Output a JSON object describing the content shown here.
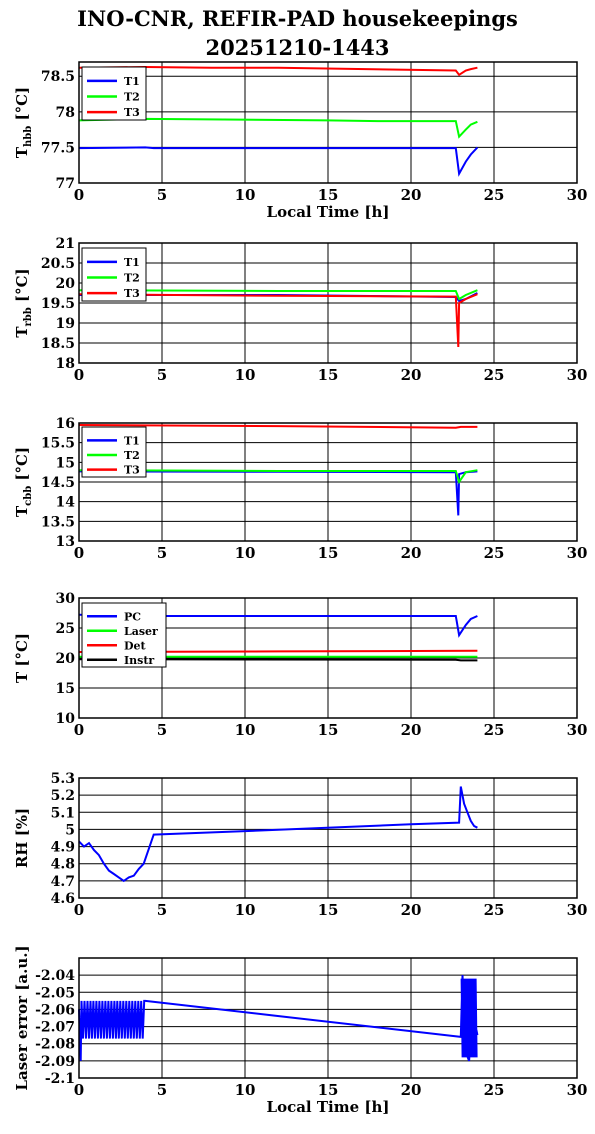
{
  "page": {
    "title_line1": "INO-CNR, REFIR-PAD housekeepings",
    "title_line2": "20251210-1443"
  },
  "chart_data": [
    {
      "type": "line",
      "xlabel": "Local Time [h]",
      "ylabel_main": "T",
      "ylabel_sub": "hbb",
      "ylabel_unit": " [°C]",
      "xlim": [
        0,
        30
      ],
      "ylim": [
        77,
        78.7
      ],
      "xticks": [
        0,
        5,
        10,
        15,
        20,
        25,
        30
      ],
      "yticks": [
        77,
        77.5,
        78,
        78.5
      ],
      "ytick_labels": [
        "77",
        "77.5",
        "78",
        "78.5"
      ],
      "grid": true,
      "legend_position": "top-left",
      "series": [
        {
          "name": "T1",
          "color": "#0000ff",
          "x": [
            0,
            4,
            4.5,
            22.7,
            22.9,
            23.3,
            23.6,
            24
          ],
          "y": [
            77.49,
            77.5,
            77.49,
            77.49,
            77.13,
            77.3,
            77.4,
            77.5
          ]
        },
        {
          "name": "T2",
          "color": "#00ff00",
          "x": [
            0,
            4,
            15,
            18,
            22.7,
            22.9,
            23.3,
            23.6,
            24
          ],
          "y": [
            77.88,
            77.9,
            77.88,
            77.87,
            77.87,
            77.65,
            77.75,
            77.82,
            77.86
          ]
        },
        {
          "name": "T3",
          "color": "#ff0000",
          "x": [
            0,
            4,
            8,
            12,
            22.7,
            22.9,
            23.3,
            23.6,
            24
          ],
          "y": [
            78.62,
            78.63,
            78.62,
            78.62,
            78.58,
            78.52,
            78.58,
            78.6,
            78.62
          ]
        }
      ]
    },
    {
      "type": "line",
      "xlabel": "",
      "ylabel_main": "T",
      "ylabel_sub": "rbb",
      "ylabel_unit": " [°C]",
      "xlim": [
        0,
        30
      ],
      "ylim": [
        18,
        21
      ],
      "xticks": [
        0,
        5,
        10,
        15,
        20,
        25,
        30
      ],
      "yticks": [
        18,
        18.5,
        19,
        19.5,
        20,
        20.5,
        21
      ],
      "ytick_labels": [
        "18",
        "18.5",
        "19",
        "19.5",
        "20",
        "20.5",
        "21"
      ],
      "grid": true,
      "legend_position": "top-left",
      "series": [
        {
          "name": "T1",
          "color": "#0000ff",
          "x": [
            0,
            12,
            22.7,
            22.9,
            23.3,
            24
          ],
          "y": [
            19.7,
            19.7,
            19.65,
            19.55,
            19.6,
            19.75
          ]
        },
        {
          "name": "T2",
          "color": "#00ff00",
          "x": [
            0,
            12,
            22.7,
            22.9,
            23.3,
            24
          ],
          "y": [
            19.82,
            19.8,
            19.8,
            19.6,
            19.7,
            19.82
          ]
        },
        {
          "name": "T3",
          "color": "#ff0000",
          "x": [
            0,
            12,
            22.7,
            22.85,
            22.9,
            23.3,
            24
          ],
          "y": [
            19.72,
            19.68,
            19.66,
            18.4,
            19.5,
            19.6,
            19.72
          ]
        }
      ]
    },
    {
      "type": "line",
      "xlabel": "",
      "ylabel_main": "T",
      "ylabel_sub": "cbb",
      "ylabel_unit": " [°C]",
      "xlim": [
        0,
        30
      ],
      "ylim": [
        13,
        16
      ],
      "xticks": [
        0,
        5,
        10,
        15,
        20,
        25,
        30
      ],
      "yticks": [
        13,
        13.5,
        14,
        14.5,
        15,
        15.5,
        16
      ],
      "ytick_labels": [
        "13",
        "13.5",
        "14",
        "14.5",
        "15",
        "15.5",
        "16"
      ],
      "grid": true,
      "legend_position": "top-left",
      "series": [
        {
          "name": "T1",
          "color": "#0000ff",
          "x": [
            0,
            12,
            22.7,
            22.85,
            22.9,
            23.3,
            24
          ],
          "y": [
            14.77,
            14.76,
            14.75,
            13.65,
            14.7,
            14.75,
            14.77
          ]
        },
        {
          "name": "T2",
          "color": "#00ff00",
          "x": [
            0,
            12,
            22.7,
            22.9,
            23.3,
            24
          ],
          "y": [
            14.8,
            14.78,
            14.78,
            14.5,
            14.75,
            14.8
          ]
        },
        {
          "name": "T3",
          "color": "#ff0000",
          "x": [
            0,
            4,
            12,
            22.7,
            23,
            24
          ],
          "y": [
            15.95,
            15.94,
            15.92,
            15.88,
            15.9,
            15.9
          ]
        }
      ]
    },
    {
      "type": "line",
      "xlabel": "",
      "ylabel_main": "T",
      "ylabel_sub": "",
      "ylabel_unit": " [°C]",
      "xlim": [
        0,
        30
      ],
      "ylim": [
        10,
        30
      ],
      "xticks": [
        0,
        5,
        10,
        15,
        20,
        25,
        30
      ],
      "yticks": [
        10,
        15,
        20,
        25,
        30
      ],
      "ytick_labels": [
        "10",
        "15",
        "20",
        "25",
        "30"
      ],
      "grid": true,
      "legend_position": "top-left",
      "series": [
        {
          "name": "PC",
          "color": "#0000ff",
          "x": [
            0,
            4,
            22.7,
            22.9,
            23.3,
            23.6,
            24
          ],
          "y": [
            27.2,
            27,
            27,
            23.8,
            25.5,
            26.5,
            27
          ]
        },
        {
          "name": "Laser",
          "color": "#00ff00",
          "x": [
            0,
            24
          ],
          "y": [
            20.2,
            20.2
          ]
        },
        {
          "name": "Det",
          "color": "#ff0000",
          "x": [
            0,
            12,
            24
          ],
          "y": [
            21,
            21.1,
            21.2
          ]
        },
        {
          "name": "Instr",
          "color": "#000000",
          "x": [
            0,
            22.7,
            23,
            24
          ],
          "y": [
            19.8,
            19.7,
            19.6,
            19.6
          ]
        }
      ]
    },
    {
      "type": "line",
      "xlabel": "",
      "ylabel_main": "RH",
      "ylabel_sub": "",
      "ylabel_unit": " [%]",
      "xlim": [
        0,
        30
      ],
      "ylim": [
        4.6,
        5.3
      ],
      "xticks": [
        0,
        5,
        10,
        15,
        20,
        25,
        30
      ],
      "yticks": [
        4.6,
        4.7,
        4.8,
        4.9,
        5,
        5.1,
        5.2,
        5.3
      ],
      "ytick_labels": [
        "4.6",
        "4.7",
        "4.8",
        "4.9",
        "5",
        "5.1",
        "5.2",
        "5.3"
      ],
      "grid": true,
      "legend_position": "none",
      "series": [
        {
          "color": "#0000ff",
          "x": [
            0,
            0.3,
            0.6,
            0.9,
            1.2,
            1.5,
            1.8,
            2.1,
            2.4,
            2.7,
            3.0,
            3.3,
            3.6,
            3.9,
            4.5,
            10,
            20,
            22.9,
            23.0,
            23.2,
            23.4,
            23.6,
            23.8,
            24
          ],
          "y": [
            4.93,
            4.9,
            4.92,
            4.88,
            4.85,
            4.8,
            4.76,
            4.74,
            4.72,
            4.7,
            4.72,
            4.73,
            4.77,
            4.8,
            4.97,
            4.99,
            5.03,
            5.04,
            5.25,
            5.15,
            5.1,
            5.05,
            5.02,
            5.01
          ]
        }
      ]
    },
    {
      "type": "line",
      "xlabel": "Local Time [h]",
      "ylabel_main": "Laser error [a.u.]",
      "ylabel_sub": "",
      "ylabel_unit": "",
      "xlim": [
        0,
        30
      ],
      "ylim": [
        -2.1,
        -2.03
      ],
      "xticks": [
        0,
        5,
        10,
        15,
        20,
        25,
        30
      ],
      "yticks": [
        -2.1,
        -2.09,
        -2.08,
        -2.07,
        -2.06,
        -2.05,
        -2.04
      ],
      "ytick_labels": [
        "-2.1",
        "-2.09",
        "-2.08",
        "-2.07",
        "-2.06",
        "-2.05",
        "-2.04"
      ],
      "grid": true,
      "legend_position": "none",
      "series": [
        {
          "color": "#0000ff",
          "oscillate": [
            0,
            4
          ],
          "osc_range": [
            -2.077,
            -2.055
          ],
          "x": [
            0,
            0.1,
            0.2,
            4,
            23,
            23.1,
            23.3,
            23.5,
            23.7,
            24
          ],
          "y": [
            -2.06,
            -2.09,
            -2.055,
            -2.055,
            -2.076,
            -2.04,
            -2.085,
            -2.09,
            -2.06,
            -2.075
          ]
        }
      ]
    }
  ]
}
